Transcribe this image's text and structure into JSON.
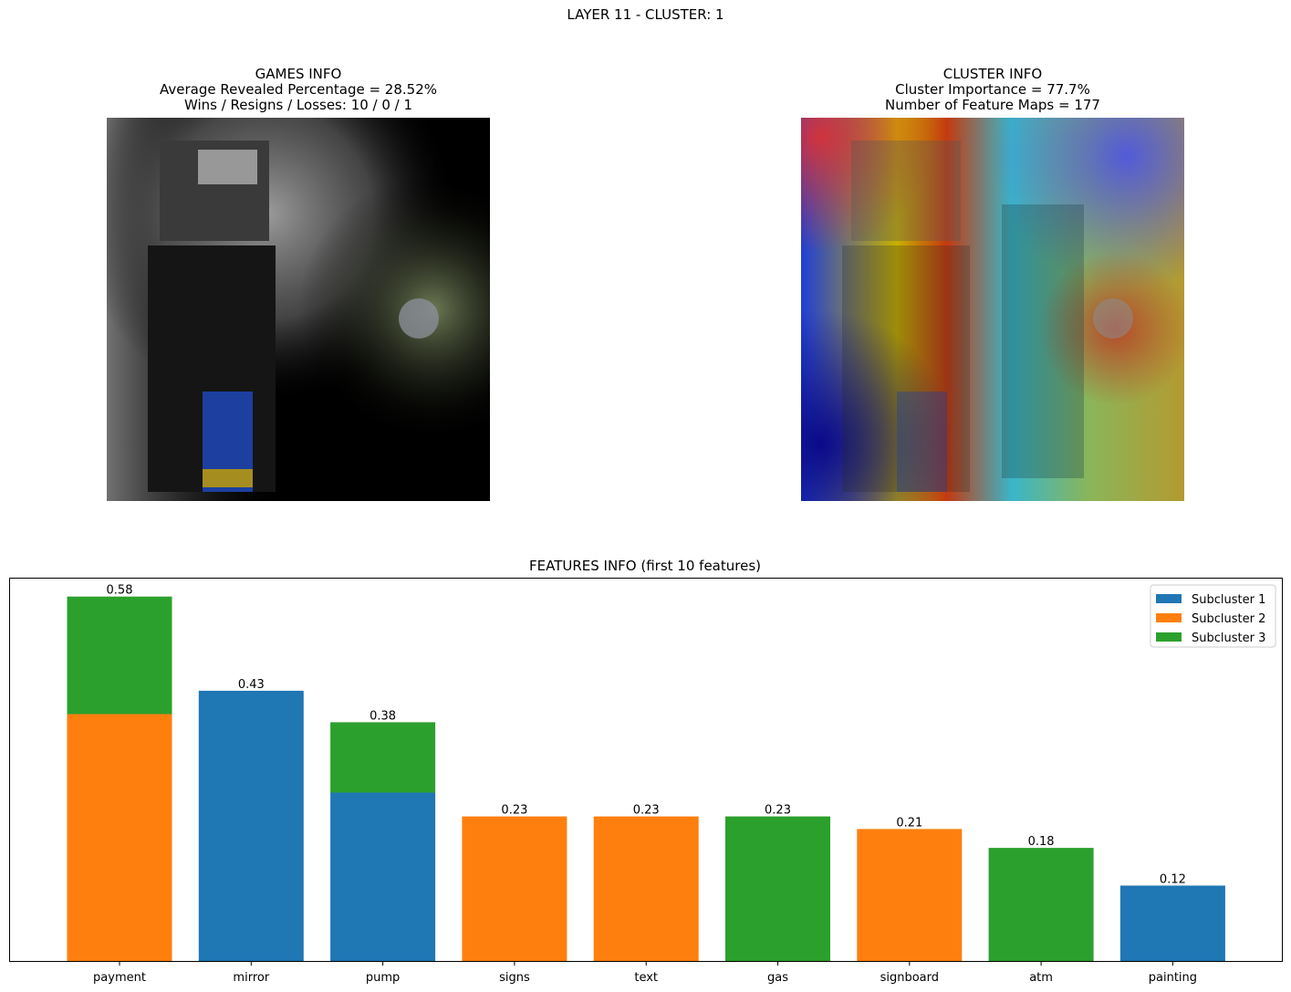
{
  "figure": {
    "suptitle": "LAYER 11 - CLUSTER: 1"
  },
  "games_info": {
    "title": "GAMES INFO",
    "line1": "Average Revealed Percentage = 28.52%",
    "line2": "Wins / Resigns / Losses: 10 / 0 / 1",
    "image_desc": "gas-pump-masked-image"
  },
  "cluster_info": {
    "title": "CLUSTER INFO",
    "line1": "Cluster Importance = 77.7%",
    "line2": "Number of Feature Maps = 177",
    "image_desc": "gas-pump-heatmap-image"
  },
  "colors": {
    "subcluster1": "#1f77b4",
    "subcluster2": "#ff7f0e",
    "subcluster3": "#2ca02c"
  },
  "chart_data": {
    "type": "bar",
    "stacked": true,
    "title": "FEATURES INFO (first 10 features)",
    "xlabel": "",
    "ylabel": "",
    "ylim": [
      0,
      0.61
    ],
    "yticks_visible": false,
    "grid": false,
    "legend_position": "top-right",
    "categories": [
      "payment",
      "mirror",
      "pump",
      "signs",
      "text",
      "gas",
      "signboard",
      "atm",
      "painting"
    ],
    "series": [
      {
        "name": "Subcluster 1",
        "color": "#1f77b4",
        "values": [
          0,
          0.43,
          0.268,
          0,
          0,
          0,
          0,
          0,
          0.12
        ]
      },
      {
        "name": "Subcluster 2",
        "color": "#ff7f0e",
        "values": [
          0.393,
          0,
          0,
          0.23,
          0.23,
          0,
          0.21,
          0,
          0
        ]
      },
      {
        "name": "Subcluster 3",
        "color": "#2ca02c",
        "values": [
          0.187,
          0,
          0.112,
          0,
          0,
          0.23,
          0,
          0.18,
          0
        ]
      }
    ],
    "totals": [
      0.58,
      0.43,
      0.38,
      0.23,
      0.23,
      0.23,
      0.21,
      0.18,
      0.12
    ],
    "total_labels": [
      "0.58",
      "0.43",
      "0.38",
      "0.23",
      "0.23",
      "0.23",
      "0.21",
      "0.18",
      "0.12"
    ]
  }
}
